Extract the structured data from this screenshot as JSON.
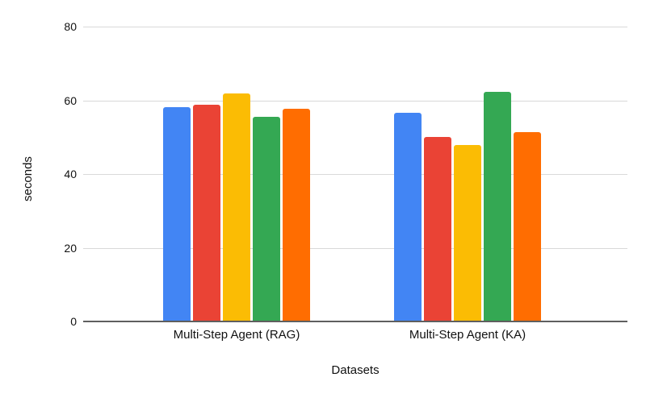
{
  "chart_data": {
    "type": "bar",
    "title": "",
    "xlabel": "Datasets",
    "ylabel": "seconds",
    "categories": [
      "Multi-Step Agent (RAG)",
      "Multi-Step Agent (KA)"
    ],
    "series": [
      {
        "name": "blue",
        "color": "#4285F4",
        "values": [
          58.2,
          56.7
        ]
      },
      {
        "name": "red",
        "color": "#EA4335",
        "values": [
          58.8,
          50.0
        ]
      },
      {
        "name": "yellow",
        "color": "#FBBC04",
        "values": [
          61.9,
          47.8
        ]
      },
      {
        "name": "green",
        "color": "#34A853",
        "values": [
          55.6,
          62.4
        ]
      },
      {
        "name": "orange",
        "color": "#FF6D01",
        "values": [
          57.7,
          51.4
        ]
      }
    ],
    "ylim": [
      0,
      80
    ],
    "yticks": [
      0,
      20,
      40,
      60,
      80
    ],
    "grid": true,
    "legend": "none",
    "style": {
      "background": "#ffffff",
      "grid_color": "#d9d9d9",
      "axis_line_color": "#5f5f5f",
      "text_color": "#111111"
    }
  }
}
